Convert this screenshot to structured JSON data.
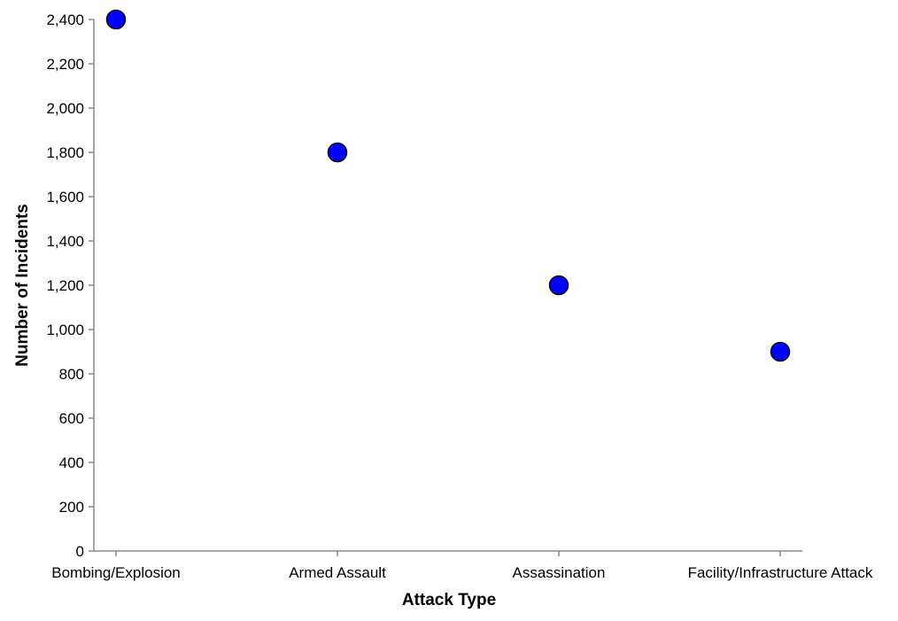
{
  "chart_data": {
    "type": "scatter",
    "title": "",
    "xlabel": "Attack Type",
    "ylabel": "Number of Incidents",
    "categories": [
      "Bombing/Explosion",
      "Armed Assault",
      "Assassination",
      "Facility/Infrastructure Attack"
    ],
    "values": [
      2400,
      1800,
      1200,
      900
    ],
    "ylim": [
      0,
      2400
    ],
    "yticks": [
      0,
      200,
      400,
      600,
      800,
      1000,
      1200,
      1400,
      1600,
      1800,
      2000,
      2200,
      2400
    ],
    "ytick_labels": [
      "0",
      "200",
      "400",
      "600",
      "800",
      "1,000",
      "1,200",
      "1,400",
      "1,600",
      "1,800",
      "2,000",
      "2,200",
      "2,400"
    ],
    "grid": false,
    "legend": "none",
    "colors": {
      "point_fill": "#0000ff",
      "point_stroke": "#000000",
      "axis": "#888888"
    }
  }
}
